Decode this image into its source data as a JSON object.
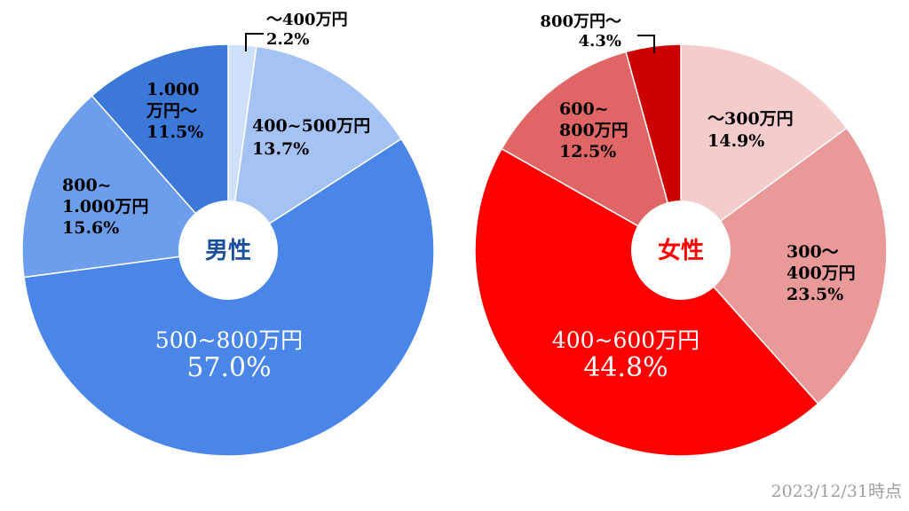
{
  "chart_data": [
    {
      "type": "pie",
      "center_label": "男性",
      "center_label_color": "#1a4f9c",
      "slices": [
        {
          "lines": [
            "〜400万円",
            "2.2%"
          ],
          "value": 2.2,
          "color": "#cfe0fa",
          "label_color": "#000000"
        },
        {
          "lines": [
            "400~500万円",
            "13.7%"
          ],
          "value": 13.7,
          "color": "#a4c2f4",
          "label_color": "#000000"
        },
        {
          "lines": [
            "500~800万円",
            "57.0%"
          ],
          "value": 57.0,
          "color": "#4a86e8",
          "label_color": "#ffffff"
        },
        {
          "lines": [
            "800~",
            "1.000万円",
            "15.6%"
          ],
          "value": 15.6,
          "color": "#6d9eeb",
          "label_color": "#000000"
        },
        {
          "lines": [
            "1.000",
            "万円〜",
            "11.5%"
          ],
          "value": 11.5,
          "color": "#3c78d8",
          "label_color": "#000000"
        }
      ]
    },
    {
      "type": "pie",
      "center_label": "女性",
      "center_label_color": "#ff0000",
      "slices": [
        {
          "lines": [
            "〜300万円",
            "14.9%"
          ],
          "value": 14.9,
          "color": "#f4cccc",
          "label_color": "#000000"
        },
        {
          "lines": [
            "300〜",
            "400万円",
            "23.5%"
          ],
          "value": 23.5,
          "color": "#ea9999",
          "label_color": "#000000"
        },
        {
          "lines": [
            "400~600万円",
            "44.8%"
          ],
          "value": 44.8,
          "color": "#ff0000",
          "label_color": "#ffffff"
        },
        {
          "lines": [
            "600~",
            "800万円",
            "12.5%"
          ],
          "value": 12.5,
          "color": "#e06666",
          "label_color": "#000000"
        },
        {
          "lines": [
            "800万円〜",
            "4.3%"
          ],
          "value": 4.3,
          "color": "#cc0000",
          "label_color": "#000000"
        }
      ]
    }
  ],
  "footnote": "2023/12/31時点"
}
